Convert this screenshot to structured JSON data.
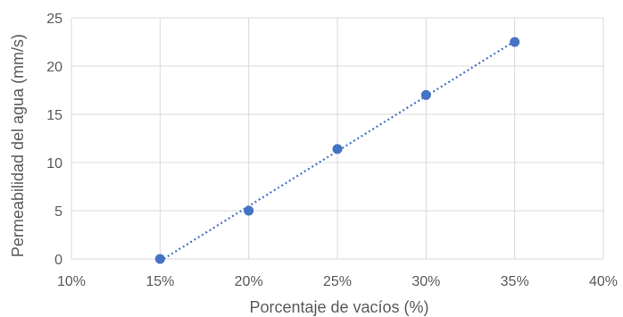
{
  "chart_data": {
    "type": "scatter",
    "xlabel": "Porcentaje de vacíos (%)",
    "ylabel": "Permeabilidad del agua (mm/s)",
    "xlim": [
      10,
      40
    ],
    "ylim": [
      0,
      25
    ],
    "x_ticks": [
      "10%",
      "15%",
      "20%",
      "25%",
      "30%",
      "35%",
      "40%"
    ],
    "y_ticks": [
      "0",
      "5",
      "10",
      "15",
      "20",
      "25"
    ],
    "grid": true,
    "trendline": "linear-dotted",
    "series": [
      {
        "x": [
          15,
          20,
          25,
          30,
          35
        ],
        "y": [
          0,
          5,
          11.4,
          17,
          22.5
        ]
      }
    ],
    "colors": {
      "marker": "#4472c4",
      "grid": "#d9d9d9",
      "text": "#595959"
    }
  }
}
